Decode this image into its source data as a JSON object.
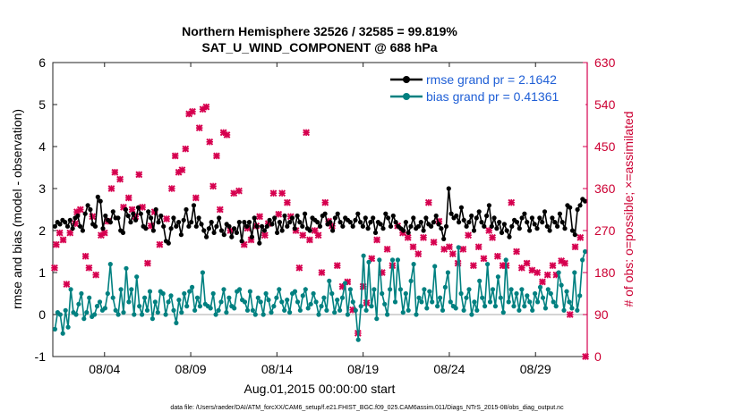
{
  "chart_data": {
    "type": "line",
    "title": "Northern Hemisphere 32526 / 32585 = 99.819%",
    "subtitle": "SAT_U_WIND_COMPONENT @ 688 hPa",
    "xlabel": "Aug.01,2015 00:00:00 start",
    "ylabel": "rmse and bias (model - observation)",
    "ylabel_right": "# of obs: o=possible; ×=assimilated",
    "footer": "data file: /Users/raeder/DAI/ATM_forcXX/CAM6_setup/f.e21.FHIST_BGC.f09_025.CAM6assim.011/Diags_NTrS_2015-08/obs_diag_output.nc",
    "ylim": [
      -1,
      6
    ],
    "y2lim": [
      0,
      630
    ],
    "x_range_days": [
      1.0,
      32.0
    ],
    "yticks": [
      "-1",
      "0",
      "1",
      "2",
      "3",
      "4",
      "5",
      "6"
    ],
    "y2ticks": [
      "0",
      "90",
      "180",
      "270",
      "360",
      "450",
      "540",
      "630"
    ],
    "xticks": [
      {
        "day": 4,
        "label": "08/04"
      },
      {
        "day": 9,
        "label": "08/09"
      },
      {
        "day": 14,
        "label": "08/14"
      },
      {
        "day": 19,
        "label": "08/19"
      },
      {
        "day": 24,
        "label": "08/24"
      },
      {
        "day": 29,
        "label": "08/29"
      }
    ],
    "colors": {
      "rmse": "#000000",
      "bias": "#008080",
      "counts": "#d6004f",
      "legend_text": "#1f5fd6",
      "zero_line": "#bbbbbb"
    },
    "series": [
      {
        "name": "rmse grand pr = 2.1642",
        "color": "#000000",
        "values": [
          2.1,
          2.2,
          2.15,
          2.25,
          2.2,
          2.1,
          2.25,
          2.05,
          2.3,
          2.35,
          2.1,
          2.0,
          2.4,
          2.6,
          2.5,
          2.15,
          2.1,
          2.8,
          2.7,
          2.05,
          2.35,
          2.25,
          2.2,
          2.45,
          2.3,
          2.3,
          2.0,
          1.95,
          2.5,
          2.35,
          2.2,
          2.4,
          2.25,
          2.55,
          2.4,
          2.1,
          2.05,
          2.45,
          2.3,
          2.0,
          2.5,
          2.2,
          2.35,
          2.1,
          1.75,
          1.7,
          2.05,
          2.3,
          2.1,
          2.2,
          1.9,
          2.25,
          2.5,
          2.1,
          2.2,
          2.6,
          2.1,
          2.3,
          2.15,
          2.0,
          1.85,
          2.05,
          2.2,
          1.95,
          2.1,
          2.3,
          2.0,
          1.9,
          2.15,
          2.1,
          1.85,
          2.05,
          1.95,
          2.2,
          1.75,
          2.2,
          2.1,
          2.2,
          1.85,
          2.3,
          2.1,
          1.7,
          2.1,
          2.0,
          2.1,
          2.25,
          2.15,
          2.3,
          1.95,
          2.2,
          2.0,
          2.35,
          2.1,
          2.2,
          2.3,
          2.05,
          2.35,
          2.2,
          2.1,
          2.4,
          2.05,
          2.0,
          2.3,
          2.25,
          2.2,
          2.1,
          2.35,
          2.4,
          2.15,
          2.2,
          2.0,
          2.3,
          2.4,
          2.2,
          2.1,
          2.3,
          2.25,
          2.2,
          2.1,
          2.25,
          2.4,
          2.2,
          2.1,
          2.3,
          2.05,
          2.2,
          2.3,
          1.95,
          2.2,
          2.15,
          2.05,
          2.4,
          2.3,
          2.1,
          2.35,
          2.2,
          2.1,
          2.05,
          2.0,
          2.2,
          1.95,
          2.1,
          2.3,
          2.05,
          2.1,
          2.2,
          2.0,
          2.3,
          2.15,
          2.1,
          2.2,
          2.35,
          2.15,
          2.05,
          1.8,
          2.1,
          3.0,
          2.4,
          2.3,
          2.35,
          2.2,
          2.55,
          2.25,
          2.1,
          2.2,
          2.35,
          2.0,
          2.3,
          2.45,
          2.2,
          2.1,
          2.35,
          2.6,
          2.1,
          2.3,
          2.05,
          2.2,
          1.95,
          2.15,
          2.0,
          1.85,
          2.1,
          2.25,
          2.2,
          2.05,
          2.3,
          2.4,
          2.2,
          2.0,
          2.3,
          2.15,
          2.05,
          2.3,
          2.2,
          2.45,
          2.1,
          2.0,
          2.3,
          2.2,
          2.1,
          2.4,
          2.2,
          2.05,
          2.6,
          2.55,
          2.0,
          1.9,
          2.5,
          2.6,
          2.75,
          2.7
        ]
      },
      {
        "name": "bias grand pr = 0.41361",
        "color": "#008080",
        "values": [
          -0.35,
          0.05,
          0.0,
          -0.45,
          0.1,
          -0.3,
          0.6,
          0.05,
          0.0,
          0.25,
          0.5,
          -0.1,
          0.05,
          0.4,
          -0.05,
          0.0,
          0.2,
          0.3,
          0.1,
          0.15,
          0.5,
          1.2,
          0.4,
          0.1,
          0.0,
          0.6,
          0.05,
          1.1,
          0.3,
          0.6,
          0.0,
          0.9,
          0.2,
          0.0,
          0.4,
          0.1,
          0.55,
          -0.1,
          0.3,
          0.05,
          0.55,
          0.5,
          0.0,
          0.3,
          0.45,
          0.1,
          -0.2,
          0.35,
          0.05,
          0.5,
          0.2,
          0.55,
          0.65,
          0.1,
          0.4,
          0.2,
          1.0,
          0.25,
          0.2,
          0.15,
          0.5,
          0.0,
          0.1,
          0.3,
          0.6,
          0.05,
          0.4,
          0.2,
          0.15,
          0.55,
          0.6,
          0.35,
          0.3,
          0.1,
          0.55,
          0.1,
          0.0,
          0.4,
          0.3,
          0.0,
          0.5,
          0.35,
          0.05,
          0.2,
          0.4,
          0.6,
          0.3,
          0.1,
          0.35,
          0.05,
          0.5,
          0.55,
          0.3,
          0.1,
          0.45,
          0.6,
          0.15,
          0.25,
          0.5,
          0.3,
          0.0,
          0.2,
          0.4,
          0.1,
          0.8,
          0.5,
          0.05,
          0.35,
          0.1,
          0.4,
          0.75,
          0.0,
          0.6,
          0.3,
          0.1,
          -0.6,
          0.2,
          1.4,
          0.1,
          1.25,
          0.2,
          0.6,
          -0.1,
          1.3,
          0.5,
          0.25,
          0.0,
          0.6,
          1.3,
          0.3,
          1.3,
          0.6,
          0.05,
          0.5,
          0.1,
          0.8,
          1.2,
          0.0,
          0.4,
          0.3,
          0.6,
          0.15,
          0.55,
          0.3,
          1.15,
          0.2,
          0.4,
          0.1,
          0.65,
          1.0,
          0.3,
          0.2,
          0.15,
          1.6,
          0.5,
          0.1,
          0.4,
          0.6,
          0.0,
          0.3,
          0.1,
          0.8,
          0.4,
          0.2,
          1.2,
          0.3,
          0.6,
          0.2,
          0.9,
          0.4,
          0.05,
          1.3,
          0.3,
          0.6,
          0.2,
          0.5,
          0.1,
          0.6,
          0.2,
          0.45,
          0.3,
          0.1,
          0.5,
          0.3,
          0.65,
          0.4,
          0.15,
          0.6,
          0.5,
          0.3,
          0.2,
          1.0,
          0.7,
          0.1,
          0.55,
          0.3,
          0.15,
          1.0,
          0.1,
          0.45,
          1.3,
          1.5
        ]
      }
    ],
    "counts_possible": [],
    "counts_assimilated": [
      [
        1.1,
        190
      ],
      [
        1.2,
        240
      ],
      [
        1.4,
        265
      ],
      [
        1.6,
        250
      ],
      [
        1.8,
        155
      ],
      [
        2.0,
        265
      ],
      [
        2.3,
        285
      ],
      [
        2.4,
        310
      ],
      [
        2.6,
        315
      ],
      [
        2.9,
        215
      ],
      [
        3.1,
        190
      ],
      [
        3.3,
        300
      ],
      [
        3.5,
        175
      ],
      [
        3.8,
        260
      ],
      [
        4.0,
        265
      ],
      [
        4.2,
        290
      ],
      [
        4.4,
        360
      ],
      [
        4.6,
        395
      ],
      [
        4.9,
        380
      ],
      [
        5.1,
        320
      ],
      [
        5.4,
        340
      ],
      [
        5.6,
        315
      ],
      [
        5.8,
        300
      ],
      [
        6.0,
        390
      ],
      [
        6.2,
        320
      ],
      [
        6.5,
        200
      ],
      [
        6.7,
        280
      ],
      [
        6.9,
        310
      ],
      [
        7.2,
        240
      ],
      [
        7.6,
        295
      ],
      [
        7.9,
        360
      ],
      [
        8.1,
        430
      ],
      [
        8.3,
        395
      ],
      [
        8.5,
        400
      ],
      [
        8.7,
        445
      ],
      [
        8.9,
        520
      ],
      [
        9.1,
        525
      ],
      [
        9.3,
        340
      ],
      [
        9.5,
        490
      ],
      [
        9.7,
        530
      ],
      [
        9.9,
        535
      ],
      [
        10.1,
        460
      ],
      [
        10.3,
        365
      ],
      [
        10.5,
        430
      ],
      [
        10.7,
        315
      ],
      [
        10.9,
        480
      ],
      [
        11.1,
        475
      ],
      [
        11.3,
        270
      ],
      [
        11.5,
        350
      ],
      [
        11.8,
        355
      ],
      [
        12.1,
        240
      ],
      [
        12.3,
        275
      ],
      [
        12.5,
        250
      ],
      [
        12.8,
        280
      ],
      [
        13.0,
        300
      ],
      [
        13.3,
        260
      ],
      [
        13.5,
        285
      ],
      [
        13.8,
        350
      ],
      [
        14.1,
        305
      ],
      [
        14.3,
        350
      ],
      [
        14.6,
        330
      ],
      [
        14.8,
        300
      ],
      [
        15.1,
        270
      ],
      [
        15.3,
        190
      ],
      [
        15.5,
        260
      ],
      [
        15.7,
        480
      ],
      [
        15.9,
        250
      ],
      [
        16.2,
        270
      ],
      [
        16.4,
        260
      ],
      [
        16.6,
        180
      ],
      [
        16.8,
        330
      ],
      [
        17.0,
        290
      ],
      [
        17.2,
        280
      ],
      [
        17.5,
        195
      ],
      [
        17.8,
        150
      ],
      [
        18.1,
        160
      ],
      [
        18.4,
        100
      ],
      [
        18.7,
        50
      ],
      [
        19.0,
        150
      ],
      [
        19.2,
        115
      ],
      [
        19.5,
        210
      ],
      [
        19.8,
        250
      ],
      [
        20.1,
        180
      ],
      [
        20.4,
        230
      ],
      [
        20.7,
        195
      ],
      [
        21.0,
        280
      ],
      [
        21.3,
        265
      ],
      [
        21.6,
        255
      ],
      [
        21.9,
        235
      ],
      [
        22.2,
        220
      ],
      [
        22.5,
        255
      ],
      [
        22.8,
        330
      ],
      [
        23.1,
        245
      ],
      [
        23.4,
        290
      ],
      [
        23.7,
        230
      ],
      [
        24.0,
        235
      ],
      [
        24.2,
        220
      ],
      [
        24.5,
        200
      ],
      [
        24.8,
        230
      ],
      [
        25.1,
        260
      ],
      [
        25.4,
        195
      ],
      [
        25.7,
        235
      ],
      [
        26.0,
        210
      ],
      [
        26.3,
        270
      ],
      [
        26.5,
        255
      ],
      [
        26.8,
        215
      ],
      [
        27.1,
        195
      ],
      [
        27.3,
        195
      ],
      [
        27.6,
        330
      ],
      [
        27.9,
        225
      ],
      [
        28.2,
        190
      ],
      [
        28.5,
        200
      ],
      [
        28.8,
        185
      ],
      [
        29.1,
        180
      ],
      [
        29.4,
        160
      ],
      [
        29.7,
        175
      ],
      [
        30.0,
        195
      ],
      [
        30.2,
        175
      ],
      [
        30.5,
        205
      ],
      [
        30.7,
        200
      ],
      [
        31.0,
        90
      ],
      [
        31.3,
        235
      ],
      [
        31.6,
        255
      ],
      [
        31.9,
        0
      ]
    ]
  }
}
